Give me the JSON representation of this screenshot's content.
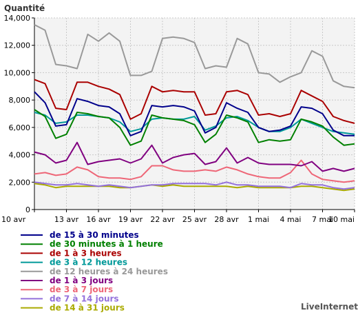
{
  "brand": "LiveInternet",
  "chart_data": {
    "type": "line",
    "title": "",
    "ylabel": "Quantité",
    "xlabel": "",
    "ylim": [
      0,
      14000
    ],
    "yticks": [
      "0",
      "2,000",
      "4,000",
      "6,000",
      "8,000",
      "10,000",
      "12,000",
      "14,000"
    ],
    "ytick_values": [
      0,
      2000,
      4000,
      6000,
      8000,
      10000,
      12000,
      14000
    ],
    "categories": [
      "10 avr",
      "11 avr",
      "12 avr",
      "13 avr",
      "14 avr",
      "15 avr",
      "16 avr",
      "17 avr",
      "18 avr",
      "19 avr",
      "20 avr",
      "21 avr",
      "22 avr",
      "23 avr",
      "24 avr",
      "25 avr",
      "26 avr",
      "27 avr",
      "28 avr",
      "29 avr",
      "30 avr",
      "1 mai",
      "2 mai",
      "3 mai",
      "4 mai",
      "5 mai",
      "6 mai",
      "7 mai",
      "8 mai",
      "9 mai",
      "10 mai"
    ],
    "xtick_labels": [
      "10 avr",
      "13 avr",
      "16 avr",
      "19 avr",
      "22 avr",
      "25 avr",
      "28 avr",
      "1 mai",
      "4 mai",
      "7 mai",
      "10 mai"
    ],
    "xtick_indices": [
      0,
      3,
      6,
      9,
      12,
      15,
      18,
      21,
      24,
      27,
      30
    ],
    "grid": true,
    "legend_position": "bottom-left",
    "series": [
      {
        "name": "de 15 à 30 minutes",
        "color": "#00008b",
        "values": [
          8600,
          7800,
          6100,
          6200,
          8100,
          7900,
          7600,
          7500,
          7000,
          5400,
          5700,
          7600,
          7500,
          7600,
          7500,
          7200,
          5600,
          6000,
          7800,
          7400,
          7100,
          6000,
          5700,
          5800,
          6100,
          7500,
          7400,
          7000,
          5800,
          5400,
          5400
        ]
      },
      {
        "name": "de 30 minutes à 1 heure",
        "color": "#008000",
        "values": [
          7300,
          6800,
          5200,
          5500,
          7100,
          7000,
          6800,
          6700,
          6000,
          4700,
          5000,
          6900,
          6700,
          6600,
          6500,
          6200,
          4900,
          5500,
          6900,
          6700,
          6400,
          4900,
          5100,
          5000,
          5100,
          6600,
          6400,
          6100,
          5300,
          4700,
          4800
        ]
      },
      {
        "name": "de 1 à 3 heures",
        "color": "#aa0000",
        "values": [
          9500,
          9200,
          7400,
          7300,
          9300,
          9300,
          9000,
          8800,
          8400,
          6600,
          7000,
          9000,
          8600,
          8700,
          8600,
          8600,
          6900,
          7000,
          8600,
          8700,
          8400,
          6900,
          7000,
          6800,
          7000,
          8700,
          8300,
          7900,
          6800,
          6500,
          6300
        ]
      },
      {
        "name": "de 3 à 12 heures",
        "color": "#009999",
        "values": [
          7100,
          6900,
          6300,
          6400,
          6900,
          6900,
          6800,
          6700,
          6400,
          5700,
          5900,
          6600,
          6700,
          6600,
          6600,
          6800,
          5800,
          6100,
          6700,
          6800,
          6500,
          6000,
          5700,
          5700,
          6000,
          6600,
          6300,
          6000,
          5700,
          5600,
          5500
        ]
      },
      {
        "name": "de 12 heures à 24 heures",
        "color": "#999999",
        "values": [
          13500,
          13100,
          10600,
          10500,
          10300,
          12800,
          12300,
          12900,
          12300,
          9800,
          9800,
          10100,
          12500,
          12600,
          12500,
          12200,
          10300,
          10500,
          10400,
          12500,
          12100,
          10000,
          9900,
          9300,
          9700,
          10000,
          11600,
          11200,
          9400,
          9000,
          8900
        ]
      },
      {
        "name": "de 1 à 3 jours",
        "color": "#800080",
        "values": [
          4200,
          4000,
          3400,
          3600,
          4900,
          3300,
          3500,
          3600,
          3700,
          3400,
          3700,
          4700,
          3400,
          3800,
          4000,
          4100,
          3300,
          3500,
          4500,
          3400,
          3800,
          3400,
          3300,
          3300,
          3300,
          3200,
          3500,
          2800,
          3000,
          2800,
          3000
        ]
      },
      {
        "name": "de 3 à 7 jours",
        "color": "#ee6677",
        "values": [
          2600,
          2700,
          2500,
          2600,
          3100,
          2900,
          2400,
          2300,
          2300,
          2200,
          2400,
          3200,
          3200,
          2900,
          2800,
          2800,
          2900,
          2800,
          3100,
          2900,
          2600,
          2400,
          2300,
          2300,
          2700,
          3600,
          2600,
          2200,
          2100,
          2000,
          2100
        ]
      },
      {
        "name": "de 7 à 14 jours",
        "color": "#9370db",
        "values": [
          2000,
          1900,
          1800,
          1800,
          1900,
          1800,
          1700,
          1800,
          1700,
          1600,
          1700,
          1800,
          1800,
          1900,
          1900,
          1900,
          1900,
          1800,
          2000,
          1800,
          1800,
          1700,
          1700,
          1700,
          1600,
          1900,
          1800,
          1800,
          1600,
          1500,
          1600
        ]
      },
      {
        "name": "de 14 à 31 jours",
        "color": "#aaaa00",
        "values": [
          1900,
          1800,
          1600,
          1700,
          1700,
          1700,
          1700,
          1700,
          1600,
          1600,
          1700,
          1800,
          1700,
          1800,
          1700,
          1700,
          1700,
          1700,
          1700,
          1600,
          1700,
          1600,
          1600,
          1600,
          1600,
          1700,
          1700,
          1600,
          1500,
          1400,
          1500
        ]
      }
    ]
  }
}
